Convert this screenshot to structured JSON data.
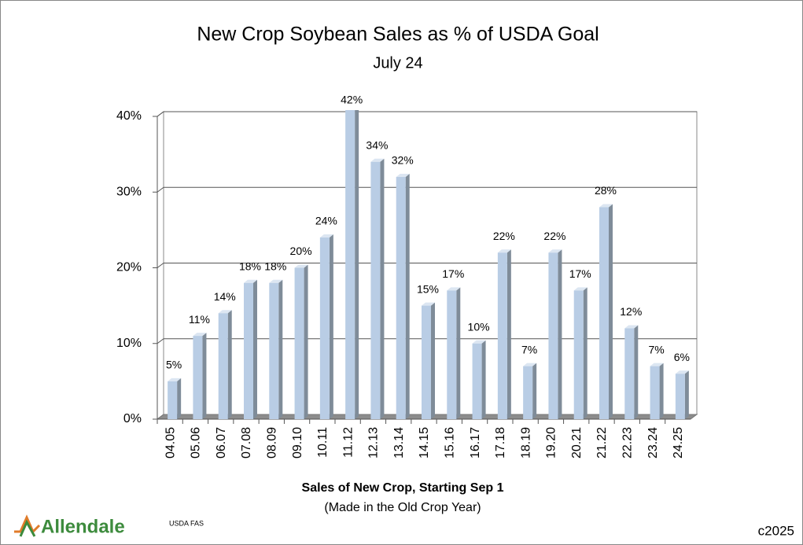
{
  "chart_data": {
    "type": "bar",
    "title": "New Crop Soybean Sales as % of USDA Goal",
    "subtitle": "July 24",
    "x_label": "Sales of New Crop, Starting Sep 1",
    "x_sublabel": "(Made in the Old Crop Year)",
    "source": "USDA FAS",
    "brand": "Allendale",
    "copyright": "c2025",
    "categories": [
      "04.05",
      "05.06",
      "06.07",
      "07.08",
      "08.09",
      "09.10",
      "10.11",
      "11.12",
      "12.13",
      "13.14",
      "14.15",
      "15.16",
      "16.17",
      "17.18",
      "18.19",
      "19.20",
      "20.21",
      "21.22",
      "22.23",
      "23.24",
      "24.25"
    ],
    "values": [
      5,
      11,
      14,
      18,
      18,
      20,
      24,
      42,
      34,
      32,
      15,
      17,
      10,
      22,
      7,
      22,
      17,
      28,
      12,
      7,
      6
    ],
    "value_labels": [
      "5%",
      "11%",
      "14%",
      "18%",
      "18%",
      "20%",
      "24%",
      "42%",
      "34%",
      "32%",
      "15%",
      "17%",
      "10%",
      "22%",
      "7%",
      "22%",
      "17%",
      "28%",
      "12%",
      "7%",
      "6%"
    ],
    "color": "#b9cde5",
    "ylim": [
      0,
      40
    ],
    "yticks": [
      {
        "value": 0,
        "label": "0%"
      },
      {
        "value": 10,
        "label": "10%"
      },
      {
        "value": 20,
        "label": "20%"
      },
      {
        "value": 30,
        "label": "30%"
      },
      {
        "value": 40,
        "label": "40%"
      }
    ],
    "grid": true
  }
}
